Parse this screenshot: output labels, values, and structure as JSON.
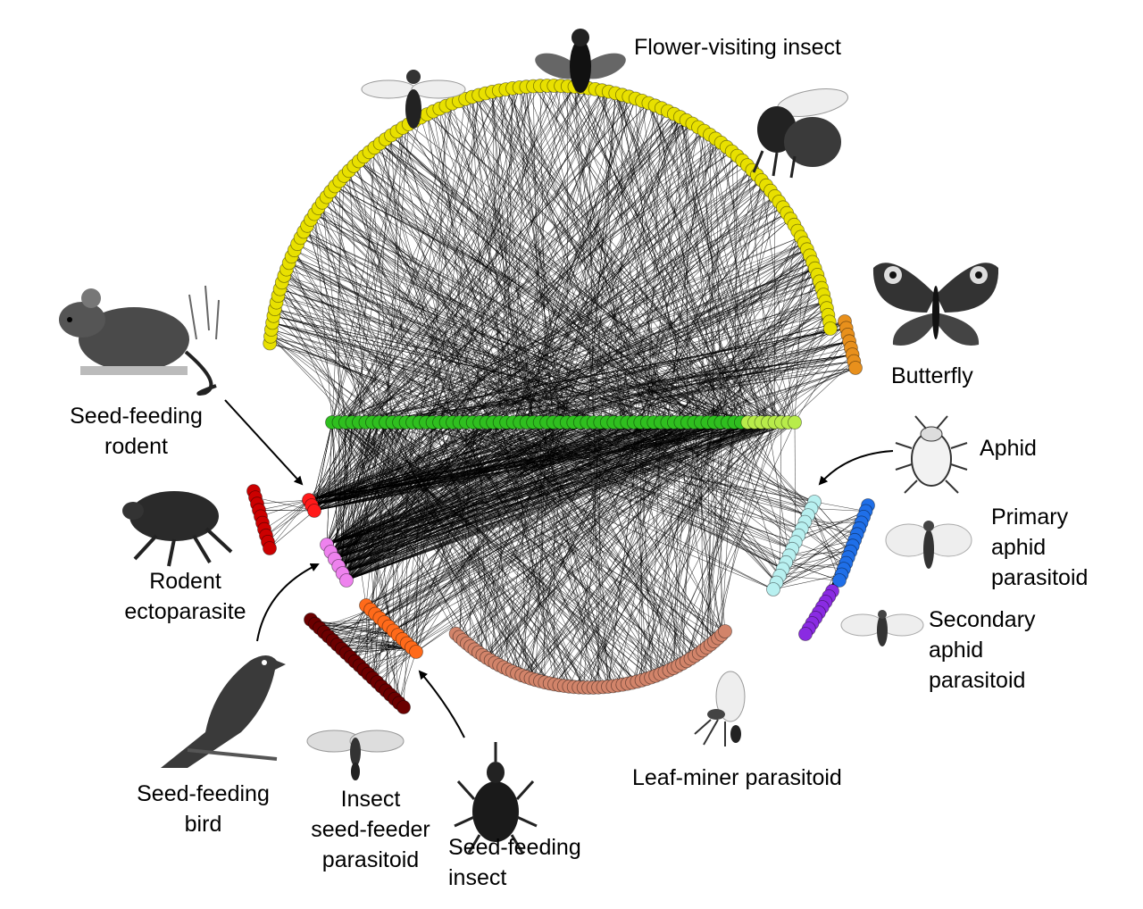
{
  "labels": {
    "flower_visiting_insect": "Flower-visiting insect",
    "butterfly": "Butterfly",
    "aphid": "Aphid",
    "primary_aphid_parasitoid": [
      "Primary",
      "aphid",
      "parasitoid"
    ],
    "secondary_aphid_parasitoid": [
      "Secondary",
      "aphid",
      "parasitoid"
    ],
    "leaf_miner_parasitoid": "Leaf-miner parasitoid",
    "seed_feeding_insect": [
      "Seed-feeding",
      "insect"
    ],
    "insect_seed_feeder_parasitoid": [
      "Insect",
      "seed-feeder",
      "parasitoid"
    ],
    "seed_feeding_bird": [
      "Seed-feeding",
      "bird"
    ],
    "rodent_ectoparasite": [
      "Rodent",
      "ectoparasite"
    ],
    "seed_feeding_rodent": [
      "Seed-feeding",
      "rodent"
    ]
  },
  "colors": {
    "flower_visiting_insect": "#e8e000",
    "butterfly": "#e8901c",
    "plants": "#2fbf1f",
    "plants_light": "#b8ec4a",
    "seed_feeding_rodent": "#ff1a1a",
    "rodent_ectoparasite": "#cc0000",
    "seed_feeding_bird": "#ee82ee",
    "insect_seed_feeder_parasitoid": "#6b0000",
    "seed_feeding_insect": "#ff6a1a",
    "leaf_miner_parasitoid": "#d2846a",
    "aphid": "#b8f0f0",
    "primary_aphid_parasitoid": "#1f6fe8",
    "secondary_aphid_parasitoid": "#8a2be2",
    "edges": "#000000"
  },
  "icons": [
    "rodent-illustration",
    "flea-illustration",
    "bird-illustration",
    "wasp-illustration",
    "weevil-illustration",
    "parasitoid-wasp-illustration",
    "fly-illustration",
    "hoverfly-illustration",
    "bumblebee-illustration",
    "peacock-butterfly-illustration",
    "aphid-illustration",
    "aphid-parasitoid-illustration",
    "secondary-parasitoid-illustration"
  ]
}
